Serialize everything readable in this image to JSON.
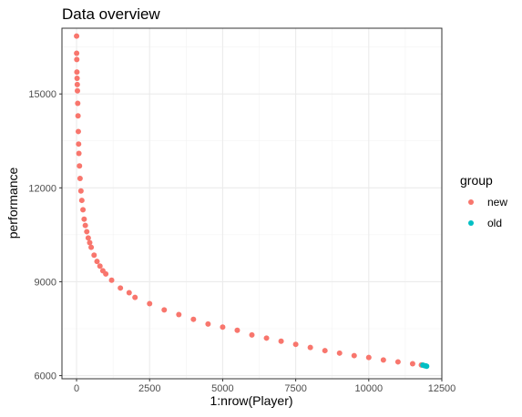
{
  "chart_data": {
    "type": "scatter",
    "title": "Data overview",
    "xlabel": "1:nrow(Player)",
    "ylabel": "performance",
    "xlim": [
      -500,
      12500
    ],
    "ylim": [
      5900,
      17100
    ],
    "x_ticks": [
      "0",
      "2500",
      "5000",
      "7500",
      "10000",
      "12500"
    ],
    "x_tick_values": [
      0,
      2500,
      5000,
      7500,
      10000,
      12500
    ],
    "y_ticks": [
      "6000",
      "9000",
      "12000",
      "15000"
    ],
    "y_tick_values": [
      6000,
      9000,
      12000,
      15000
    ],
    "grid": true,
    "legend": {
      "title": "group",
      "position": "right",
      "entries": [
        {
          "label": "new",
          "color": "#F8766D"
        },
        {
          "label": "old",
          "color": "#00BFC4"
        }
      ]
    },
    "series": [
      {
        "name": "new",
        "color": "#F8766D",
        "x": [
          1,
          3,
          8,
          12,
          18,
          25,
          30,
          40,
          50,
          60,
          70,
          80,
          100,
          120,
          150,
          180,
          220,
          260,
          300,
          350,
          400,
          450,
          500,
          600,
          700,
          800,
          900,
          1000,
          1200,
          1500,
          1800,
          2000,
          2500,
          3000,
          3500,
          4000,
          4500,
          5000,
          5500,
          6000,
          6500,
          7000,
          7500,
          8000,
          8500,
          9000,
          9500,
          10000,
          10500,
          11000,
          11500,
          11800
        ],
        "y": [
          16850,
          16300,
          16100,
          15700,
          15500,
          15300,
          15100,
          14700,
          14300,
          13800,
          13400,
          13100,
          12700,
          12300,
          11900,
          11600,
          11300,
          11000,
          10800,
          10600,
          10400,
          10250,
          10100,
          9850,
          9650,
          9500,
          9350,
          9250,
          9050,
          8800,
          8650,
          8500,
          8300,
          8100,
          7950,
          7800,
          7650,
          7550,
          7450,
          7300,
          7200,
          7100,
          7000,
          6900,
          6800,
          6720,
          6640,
          6580,
          6500,
          6440,
          6380,
          6340
        ]
      },
      {
        "name": "old",
        "color": "#00BFC4",
        "x": [
          11850,
          11900,
          11950,
          11980
        ],
        "y": [
          6335,
          6320,
          6310,
          6300
        ]
      }
    ]
  }
}
